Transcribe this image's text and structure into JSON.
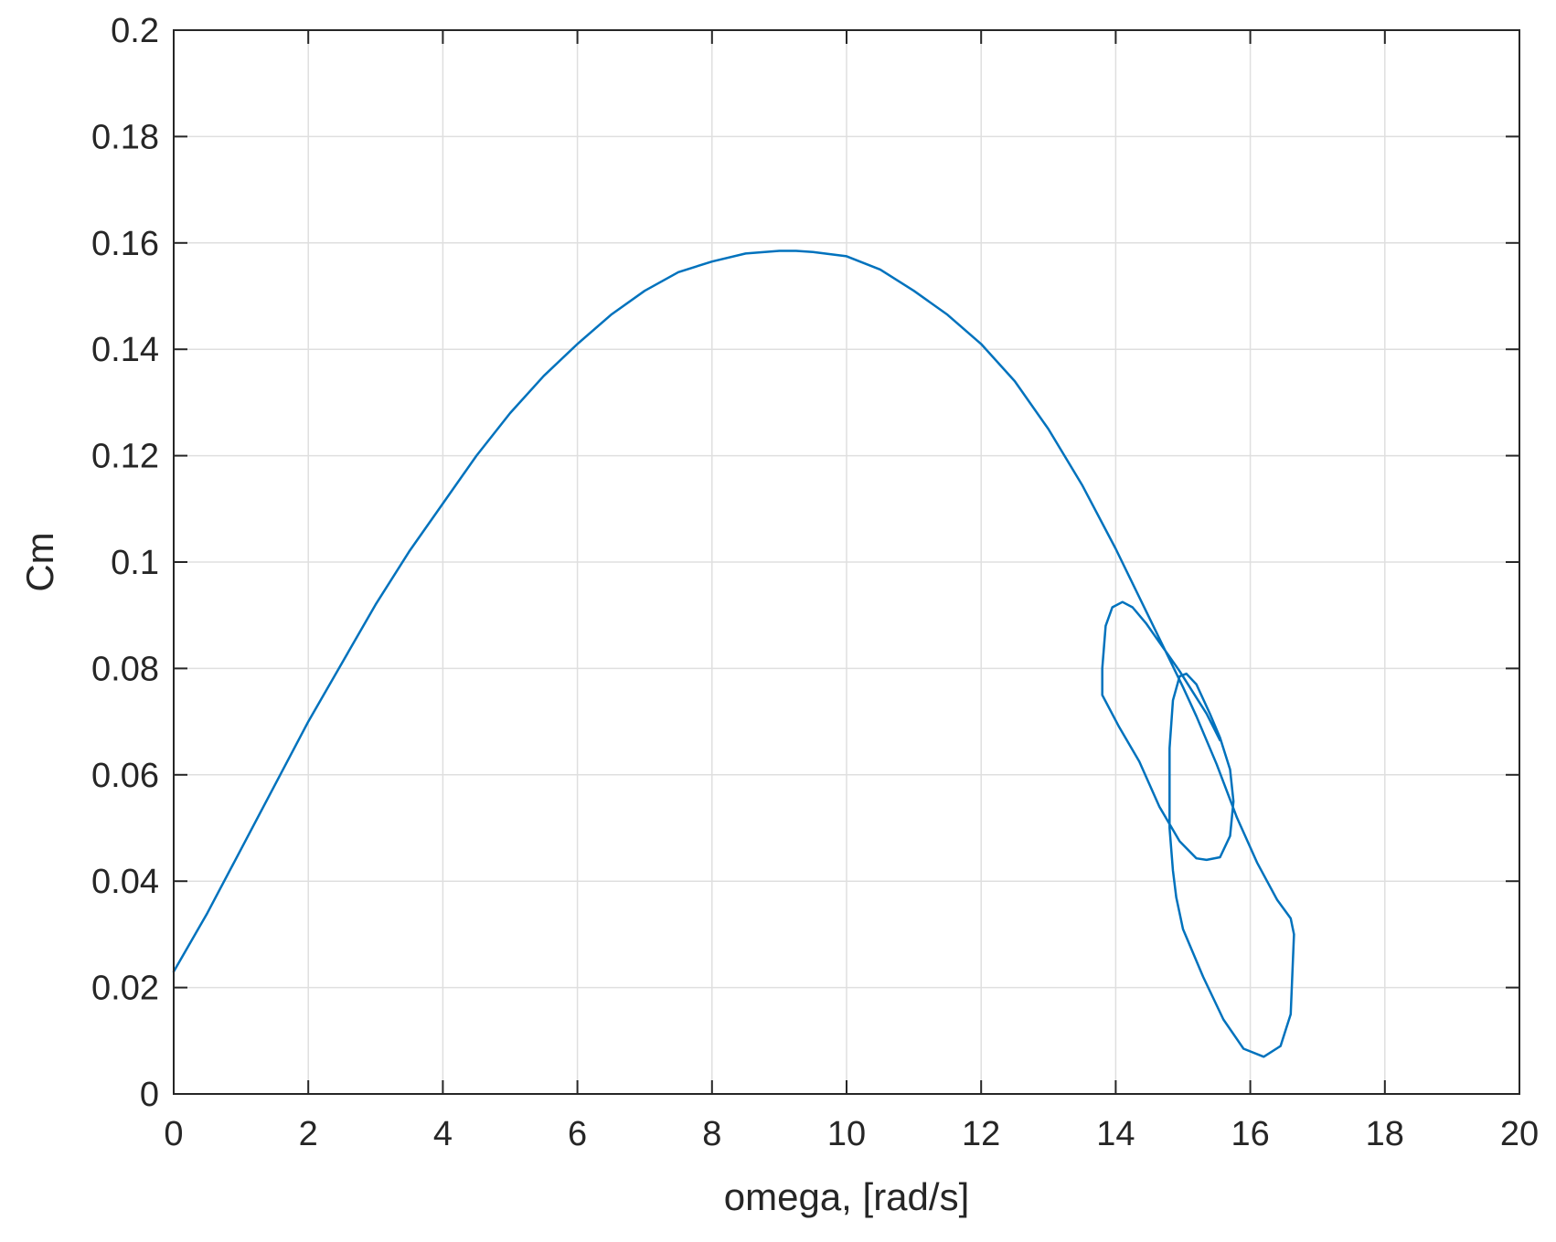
{
  "chart_data": {
    "type": "line",
    "title": "",
    "xlabel": "omega, [rad/s]",
    "ylabel": "Cm",
    "xlim": [
      0,
      20
    ],
    "ylim": [
      0,
      0.2
    ],
    "xticks": [
      "0",
      "2",
      "4",
      "6",
      "8",
      "10",
      "12",
      "14",
      "16",
      "18",
      "20"
    ],
    "yticks": [
      "0",
      "0.02",
      "0.04",
      "0.06",
      "0.08",
      "0.1",
      "0.12",
      "0.14",
      "0.16",
      "0.18",
      "0.2"
    ],
    "grid": true,
    "legend": "none",
    "colors": {
      "series": "#0072BD",
      "axes": "#262626",
      "grid": "#dfdfdf"
    },
    "series": [
      {
        "x": [
          0,
          0.5,
          1,
          1.5,
          2,
          2.5,
          3,
          3.5,
          4,
          4.5,
          5,
          5.5,
          6,
          6.5,
          7,
          7.5,
          8,
          8.5,
          9,
          9.25,
          9.5,
          10,
          10.5,
          11,
          11.5,
          12,
          12.5,
          13,
          13.5,
          14,
          14.5,
          15,
          15.2,
          15.5,
          15.8,
          16.1,
          16.4,
          16.6,
          16.65,
          16.6,
          16.45,
          16.2,
          15.9,
          15.6,
          15.3,
          15.0,
          14.9,
          14.85,
          14.8,
          14.8,
          14.85,
          14.95,
          15.05,
          15.2,
          15.4,
          15.55,
          15.7,
          15.75,
          15.7,
          15.55,
          15.35,
          15.2,
          14.95,
          14.65,
          14.35,
          14.05,
          13.8,
          13.8,
          13.85,
          13.95,
          14.1,
          14.25,
          14.45,
          14.7,
          14.95,
          15.15,
          15.35,
          15.55
        ],
        "y": [
          0.023,
          0.034,
          0.046,
          0.058,
          0.07,
          0.081,
          0.092,
          0.102,
          0.111,
          0.12,
          0.128,
          0.135,
          0.141,
          0.1465,
          0.151,
          0.1545,
          0.1565,
          0.158,
          0.1585,
          0.1585,
          0.1583,
          0.1575,
          0.155,
          0.151,
          0.1465,
          0.141,
          0.134,
          0.125,
          0.1145,
          0.1025,
          0.0895,
          0.0765,
          0.071,
          0.062,
          0.052,
          0.0435,
          0.0365,
          0.033,
          0.03,
          0.015,
          0.009,
          0.007,
          0.0085,
          0.014,
          0.022,
          0.031,
          0.037,
          0.042,
          0.05,
          0.065,
          0.074,
          0.0785,
          0.079,
          0.077,
          0.0715,
          0.067,
          0.061,
          0.055,
          0.0485,
          0.0445,
          0.044,
          0.0443,
          0.0475,
          0.054,
          0.0625,
          0.069,
          0.075,
          0.08,
          0.088,
          0.0915,
          0.0925,
          0.0915,
          0.0885,
          0.084,
          0.0795,
          0.0755,
          0.0715,
          0.0665
        ]
      }
    ]
  }
}
